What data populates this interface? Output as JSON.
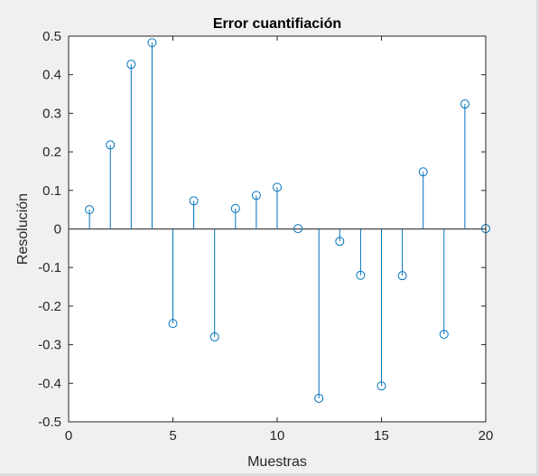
{
  "colors": {
    "figure_background": "#f0f0f0",
    "axes_background": "#ffffff",
    "axis_color": "#262626",
    "stem_color": "#0072bd"
  },
  "chart_data": {
    "type": "stem",
    "title": "Error cuantifiación",
    "xlabel": "Muestras",
    "ylabel": "Resolución",
    "xlim": [
      0,
      20
    ],
    "ylim": [
      -0.5,
      0.5
    ],
    "x_ticks": [
      0,
      5,
      10,
      15,
      20
    ],
    "x_tick_labels": [
      "0",
      "5",
      "10",
      "15",
      "20"
    ],
    "y_ticks": [
      0.5,
      0.4,
      0.3,
      0.2,
      0.1,
      0,
      -0.1,
      -0.2,
      -0.3,
      -0.4,
      -0.5
    ],
    "y_tick_labels": [
      "0.5",
      "0.4",
      "0.3",
      "0.2",
      "0.1",
      "0",
      "-0.1",
      "-0.2",
      "-0.3",
      "-0.4",
      "-0.5"
    ],
    "grid": false,
    "baseline": 0,
    "marker": "circle",
    "x": [
      1,
      2,
      3,
      4,
      5,
      6,
      7,
      8,
      9,
      10,
      11,
      12,
      13,
      14,
      15,
      16,
      17,
      18,
      19,
      20
    ],
    "values": [
      0.05,
      0.218,
      0.427,
      0.483,
      -0.245,
      0.073,
      -0.28,
      0.053,
      0.087,
      0.108,
      0.001,
      -0.439,
      -0.032,
      -0.12,
      -0.407,
      -0.121,
      0.148,
      -0.273,
      0.324,
      0.001
    ]
  }
}
